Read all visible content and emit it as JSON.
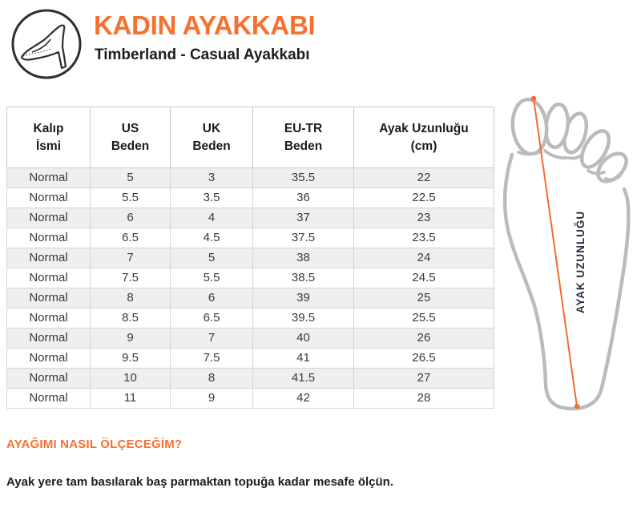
{
  "header": {
    "title": "KADIN AYAKKABI",
    "subtitle": "Timberland - Casual Ayakkabı"
  },
  "icons": {
    "logo": "high-heel-shoe-icon",
    "diagram": "foot-sole-outline-icon"
  },
  "colors": {
    "accent_orange": "#F7702D",
    "measure_line_orange": "#F76B2C",
    "heading_text": "#1D1D1D",
    "cell_text": "#3A3A3A",
    "row_stripe": "#EFEFEF",
    "table_border": "#D4D4D4",
    "foot_outline_gray": "#BBBBBB",
    "foot_label_navy": "#252B3A"
  },
  "table": {
    "columns": [
      "Kalıp\nİsmi",
      "US\nBeden",
      "UK\nBeden",
      "EU-TR\nBeden",
      "Ayak Uzunluğu\n(cm)"
    ],
    "rows": [
      [
        "Normal",
        "5",
        "3",
        "35.5",
        "22"
      ],
      [
        "Normal",
        "5.5",
        "3.5",
        "36",
        "22.5"
      ],
      [
        "Normal",
        "6",
        "4",
        "37",
        "23"
      ],
      [
        "Normal",
        "6.5",
        "4.5",
        "37.5",
        "23.5"
      ],
      [
        "Normal",
        "7",
        "5",
        "38",
        "24"
      ],
      [
        "Normal",
        "7.5",
        "5.5",
        "38.5",
        "24.5"
      ],
      [
        "Normal",
        "8",
        "6",
        "39",
        "25"
      ],
      [
        "Normal",
        "8.5",
        "6.5",
        "39.5",
        "25.5"
      ],
      [
        "Normal",
        "9",
        "7",
        "40",
        "26"
      ],
      [
        "Normal",
        "9.5",
        "7.5",
        "41",
        "26.5"
      ],
      [
        "Normal",
        "10",
        "8",
        "41.5",
        "27"
      ],
      [
        "Normal",
        "11",
        "9",
        "42",
        "28"
      ]
    ]
  },
  "diagram": {
    "label": "AYAK UZUNLUĞU"
  },
  "footer": {
    "heading": "AYAĞIMI NASIL ÖLÇECEĞİM?",
    "body": "Ayak yere tam basılarak baş parmaktan topuğa kadar mesafe ölçün."
  }
}
